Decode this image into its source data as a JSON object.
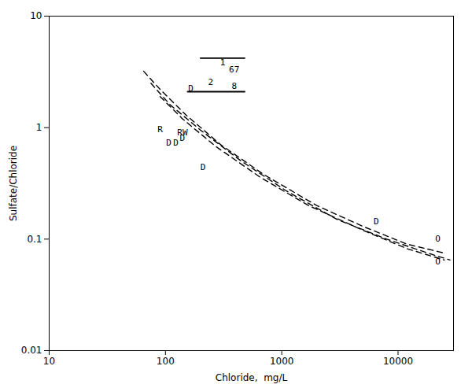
{
  "chart_data": {
    "type": "line",
    "xlabel": "Chloride,  mg/L",
    "ylabel": "Sulfate/Chloride",
    "log": true,
    "grid": false,
    "xlim": [
      10,
      30000
    ],
    "ylim": [
      0.01,
      10
    ],
    "xticks": [
      10,
      100,
      1000,
      10000
    ],
    "yticks": [
      0.01,
      0.1,
      1,
      10
    ],
    "series": [
      {
        "color": "black",
        "line_style": "solid",
        "x": [
          200,
          480
        ],
        "values": [
          4.2,
          4.2
        ]
      },
      {
        "color": "black",
        "line_style": "solid",
        "x": [
          155,
          480
        ],
        "values": [
          2.1,
          2.1
        ]
      },
      {
        "color": "black",
        "line_style": "dashed",
        "x": [
          65,
          90,
          150,
          300,
          700,
          2000,
          5000,
          12000,
          25000
        ],
        "values": [
          3.2,
          2.2,
          1.3,
          0.7,
          0.38,
          0.2,
          0.13,
          0.09,
          0.075
        ]
      },
      {
        "color": "black",
        "line_style": "dashed",
        "x": [
          75,
          110,
          200,
          450,
          1100,
          3000,
          8000,
          18000,
          28000
        ],
        "values": [
          2.5,
          1.6,
          0.95,
          0.5,
          0.27,
          0.15,
          0.1,
          0.075,
          0.065
        ]
      },
      {
        "color": "black",
        "line_style": "dashed",
        "x": [
          90,
          140,
          270,
          650,
          1700,
          5000,
          12000,
          25000
        ],
        "values": [
          1.9,
          1.2,
          0.68,
          0.36,
          0.2,
          0.12,
          0.082,
          0.065
        ]
      }
    ],
    "annotations": [
      {
        "x": 310,
        "y": 3.85,
        "text": "1"
      },
      {
        "x": 390,
        "y": 2.35,
        "text": "8"
      },
      {
        "x": 390,
        "y": 3.3,
        "text": "67"
      },
      {
        "x": 245,
        "y": 2.55,
        "text": "2"
      },
      {
        "x": 90,
        "y": 0.97,
        "text": "R"
      },
      {
        "x": 140,
        "y": 0.91,
        "text": "RW"
      },
      {
        "x": 140,
        "y": 0.8,
        "text": "D"
      },
      {
        "x": 107,
        "y": 0.73,
        "text": "D"
      },
      {
        "x": 123,
        "y": 0.73,
        "text": "D"
      },
      {
        "x": 165,
        "y": 2.25,
        "text": "D"
      },
      {
        "x": 210,
        "y": 0.44,
        "text": "D"
      },
      {
        "x": 6500,
        "y": 0.145,
        "text": "D"
      },
      {
        "x": 22000,
        "y": 0.1,
        "text": "O"
      },
      {
        "x": 22000,
        "y": 0.063,
        "text": "O"
      }
    ]
  }
}
